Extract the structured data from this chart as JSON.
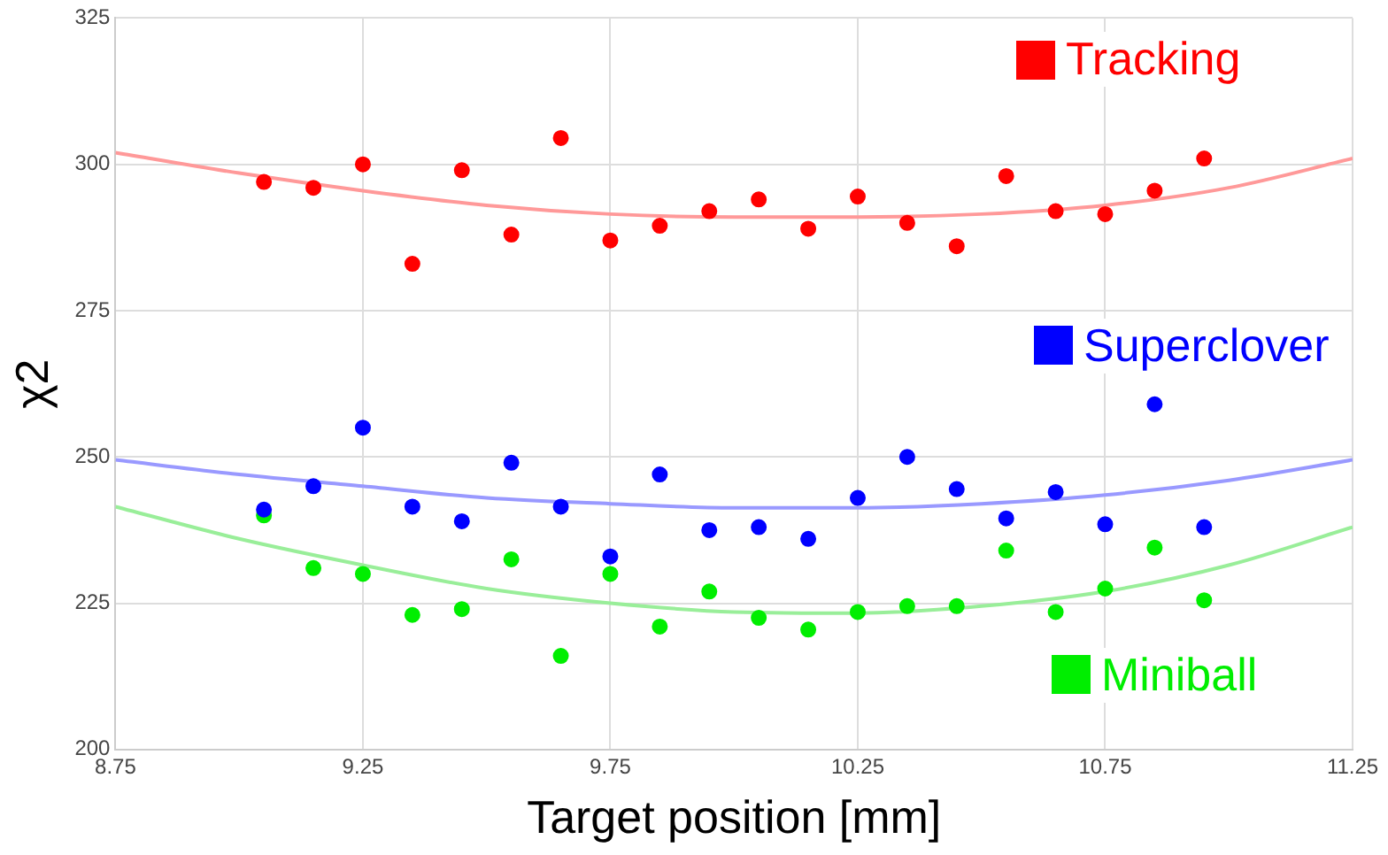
{
  "chart_data": {
    "type": "scatter",
    "xlabel": "Target position [mm]",
    "ylabel": "χ2",
    "x": [
      9.05,
      9.15,
      9.25,
      9.35,
      9.45,
      9.55,
      9.65,
      9.75,
      9.85,
      9.95,
      10.05,
      10.15,
      10.25,
      10.35,
      10.45,
      10.55,
      10.65,
      10.75,
      10.85,
      10.95
    ],
    "series": [
      {
        "name": "Tracking",
        "color": "#ff0000",
        "values": [
          297,
          296,
          300,
          283,
          299,
          288,
          304.5,
          287,
          289.5,
          292,
          294,
          289,
          294.5,
          290,
          286,
          298,
          292,
          291.5,
          295.5,
          301
        ]
      },
      {
        "name": "Superclover",
        "color": "#0000ff",
        "values": [
          241,
          245,
          255,
          241.5,
          239,
          249,
          241.5,
          233,
          247,
          237.5,
          238,
          236,
          243,
          250,
          244.5,
          239.5,
          244,
          238.5,
          259,
          238
        ]
      },
      {
        "name": "Miniball",
        "color": "#00ee00",
        "values": [
          240,
          231,
          230,
          223,
          224,
          232.5,
          216,
          230,
          221,
          227,
          222.5,
          220.5,
          223.5,
          224.5,
          224.5,
          234,
          223.5,
          227.5,
          234.5,
          225.5
        ]
      },
      {
        "type": "line",
        "color": "#ff9999",
        "x": [
          8.75,
          9,
          9.25,
          9.5,
          9.75,
          10,
          10.25,
          10.5,
          10.75,
          11,
          11.25
        ],
        "values": [
          302,
          298.5,
          295.5,
          293,
          291.5,
          291,
          291,
          291.5,
          293,
          296,
          301
        ]
      },
      {
        "type": "line",
        "color": "#9999ff",
        "x": [
          8.75,
          9,
          9.25,
          9.5,
          9.75,
          10,
          10.25,
          10.5,
          10.75,
          11,
          11.25
        ],
        "values": [
          249.5,
          247,
          245,
          243,
          242,
          241.3,
          241.3,
          242,
          243.5,
          246,
          249.5
        ]
      },
      {
        "type": "line",
        "color": "#99ee99",
        "x": [
          8.75,
          9,
          9.25,
          9.5,
          9.75,
          10,
          10.25,
          10.5,
          10.75,
          11,
          11.25
        ],
        "values": [
          241.5,
          236,
          231.5,
          227.5,
          225,
          223.5,
          223.3,
          224.5,
          227,
          231.5,
          238
        ]
      }
    ],
    "xlim": [
      8.75,
      11.25
    ],
    "xticks": [
      8.75,
      9.25,
      9.75,
      10.25,
      10.75,
      11.25
    ],
    "ylim": [
      200,
      325
    ],
    "yticks": [
      200,
      225,
      250,
      275,
      300,
      325
    ],
    "grid": true,
    "legend": "right"
  }
}
